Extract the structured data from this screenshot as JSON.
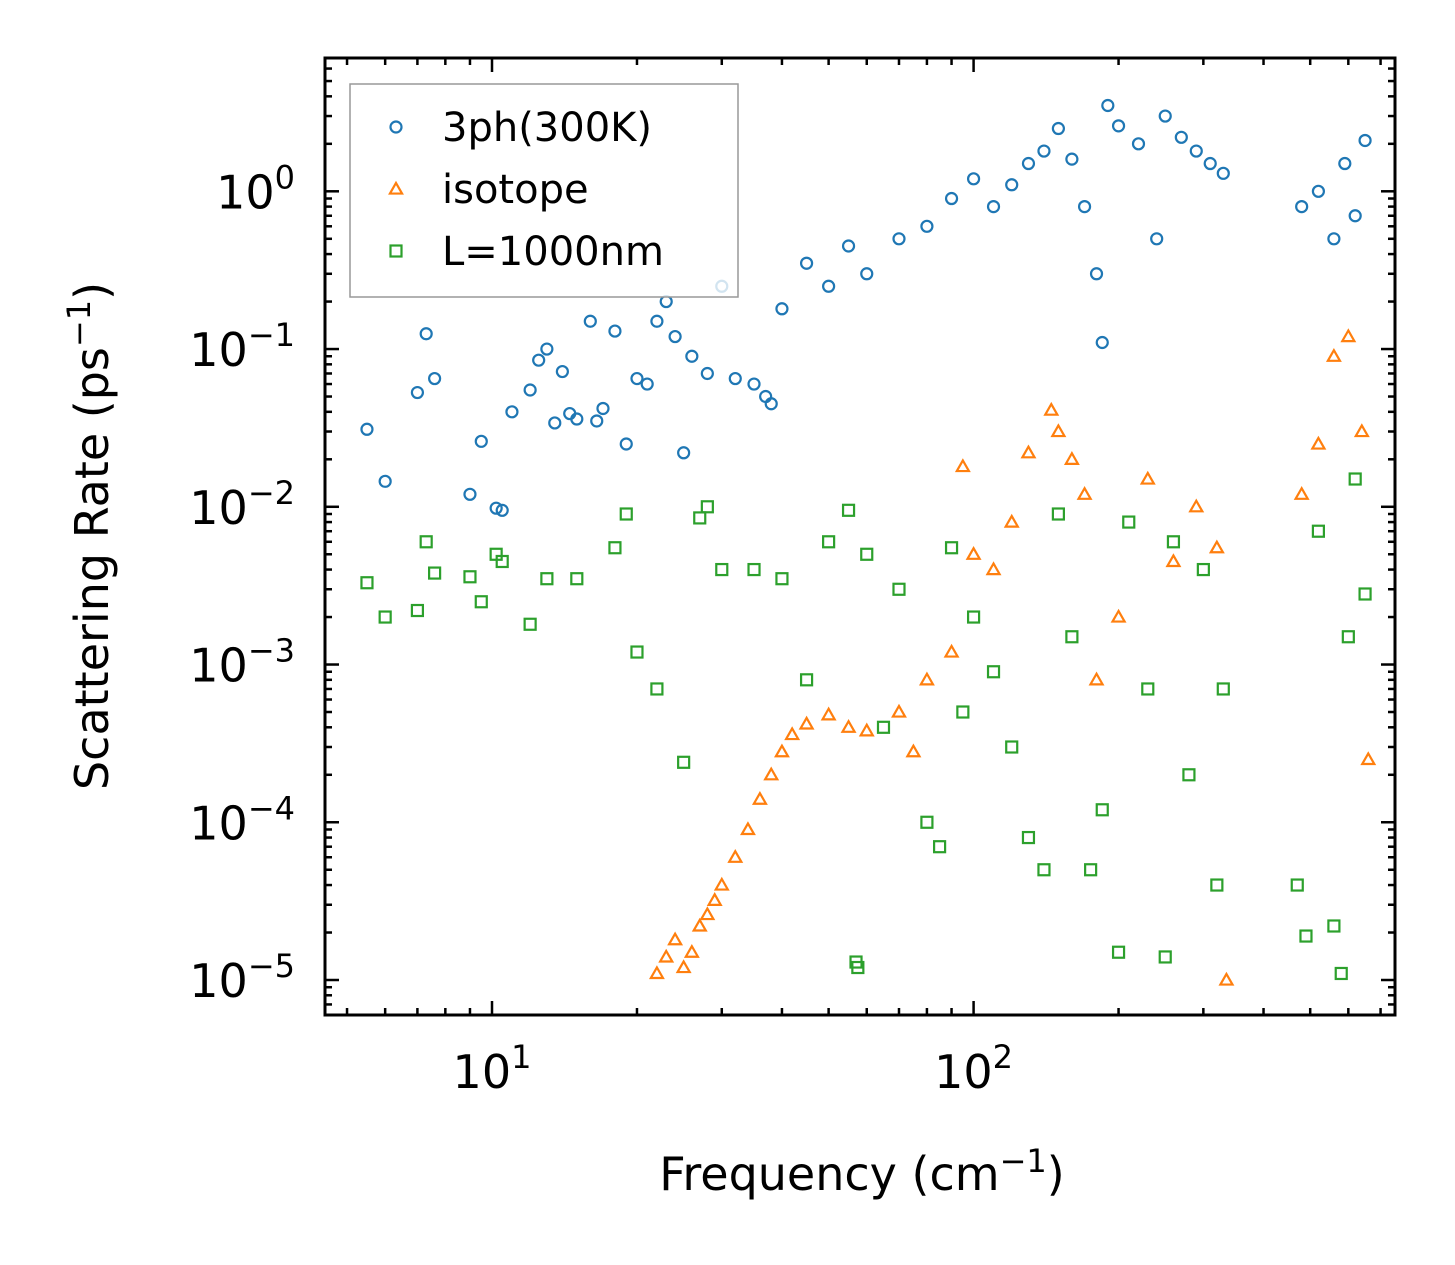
{
  "chart_data": {
    "type": "scatter",
    "title": "",
    "xlabel": "Frequency",
    "xlabel_unit": "cm",
    "xlabel_unit_exp": "−1",
    "ylabel": "Scattering Rate",
    "ylabel_unit": "ps",
    "ylabel_unit_exp": "−1",
    "xscale": "log",
    "yscale": "log",
    "xlim": [
      4.5,
      750
    ],
    "ylim": [
      6e-06,
      7
    ],
    "x_ticks": [
      {
        "value": 10,
        "base": "10",
        "exp": "1"
      },
      {
        "value": 100,
        "base": "10",
        "exp": "2"
      }
    ],
    "y_ticks": [
      {
        "value": 1,
        "base": "10",
        "exp": "0"
      },
      {
        "value": 0.1,
        "base": "10",
        "exp": "−1"
      },
      {
        "value": 0.01,
        "base": "10",
        "exp": "−2"
      },
      {
        "value": 0.001,
        "base": "10",
        "exp": "−3"
      },
      {
        "value": 0.0001,
        "base": "10",
        "exp": "−4"
      },
      {
        "value": 1e-05,
        "base": "10",
        "exp": "−5"
      }
    ],
    "legend_position": "top-left",
    "series": [
      {
        "name": "3ph(300K)",
        "marker": "circle",
        "color": "#1f77b4",
        "points": [
          [
            5.5,
            0.031
          ],
          [
            6.0,
            0.0145
          ],
          [
            7.0,
            0.053
          ],
          [
            7.3,
            0.125
          ],
          [
            7.6,
            0.065
          ],
          [
            9.0,
            0.012
          ],
          [
            9.5,
            0.026
          ],
          [
            10.2,
            0.0098
          ],
          [
            10.5,
            0.0095
          ],
          [
            11.0,
            0.04
          ],
          [
            12.0,
            0.055
          ],
          [
            12.5,
            0.085
          ],
          [
            13.0,
            0.1
          ],
          [
            13.5,
            0.034
          ],
          [
            14.0,
            0.072
          ],
          [
            14.5,
            0.039
          ],
          [
            15.0,
            0.036
          ],
          [
            16.0,
            0.15
          ],
          [
            16.5,
            0.035
          ],
          [
            17.0,
            0.042
          ],
          [
            18.0,
            0.13
          ],
          [
            19.0,
            0.025
          ],
          [
            20.0,
            0.065
          ],
          [
            21.0,
            0.06
          ],
          [
            22.0,
            0.15
          ],
          [
            23.0,
            0.2
          ],
          [
            24.0,
            0.12
          ],
          [
            25.0,
            0.022
          ],
          [
            26.0,
            0.09
          ],
          [
            28.0,
            0.07
          ],
          [
            30.0,
            0.25
          ],
          [
            32.0,
            0.065
          ],
          [
            35.0,
            0.06
          ],
          [
            37.0,
            0.05
          ],
          [
            38.0,
            0.045
          ],
          [
            40.0,
            0.18
          ],
          [
            45.0,
            0.35
          ],
          [
            50.0,
            0.25
          ],
          [
            55.0,
            0.45
          ],
          [
            60.0,
            0.3
          ],
          [
            70.0,
            0.5
          ],
          [
            80.0,
            0.6
          ],
          [
            90.0,
            0.9
          ],
          [
            100.0,
            1.2
          ],
          [
            110.0,
            0.8
          ],
          [
            120.0,
            1.1
          ],
          [
            130.0,
            1.5
          ],
          [
            140.0,
            1.8
          ],
          [
            150.0,
            2.5
          ],
          [
            160.0,
            1.6
          ],
          [
            170.0,
            0.8
          ],
          [
            180.0,
            0.3
          ],
          [
            185.0,
            0.11
          ],
          [
            190.0,
            3.5
          ],
          [
            200.0,
            2.6
          ],
          [
            220.0,
            2.0
          ],
          [
            240.0,
            0.5
          ],
          [
            250.0,
            3.0
          ],
          [
            270.0,
            2.2
          ],
          [
            290.0,
            1.8
          ],
          [
            310.0,
            1.5
          ],
          [
            330.0,
            1.3
          ],
          [
            480.0,
            0.8
          ],
          [
            520.0,
            1.0
          ],
          [
            560.0,
            0.5
          ],
          [
            590.0,
            1.5
          ],
          [
            620.0,
            0.7
          ],
          [
            650.0,
            2.1
          ]
        ]
      },
      {
        "name": "isotope",
        "marker": "triangle",
        "color": "#ff7f0e",
        "points": [
          [
            22.0,
            1.1e-05
          ],
          [
            23.0,
            1.4e-05
          ],
          [
            24.0,
            1.8e-05
          ],
          [
            25.0,
            1.2e-05
          ],
          [
            26.0,
            1.5e-05
          ],
          [
            27.0,
            2.2e-05
          ],
          [
            28.0,
            2.6e-05
          ],
          [
            29.0,
            3.2e-05
          ],
          [
            30.0,
            4e-05
          ],
          [
            32.0,
            6e-05
          ],
          [
            34.0,
            9e-05
          ],
          [
            36.0,
            0.00014
          ],
          [
            38.0,
            0.0002
          ],
          [
            40.0,
            0.00028
          ],
          [
            42.0,
            0.00036
          ],
          [
            45.0,
            0.00042
          ],
          [
            50.0,
            0.00048
          ],
          [
            55.0,
            0.0004
          ],
          [
            60.0,
            0.00038
          ],
          [
            70.0,
            0.0005
          ],
          [
            75.0,
            0.00028
          ],
          [
            80.0,
            0.0008
          ],
          [
            90.0,
            0.0012
          ],
          [
            95.0,
            0.018
          ],
          [
            100.0,
            0.005
          ],
          [
            110.0,
            0.004
          ],
          [
            120.0,
            0.008
          ],
          [
            130.0,
            0.022
          ],
          [
            145.0,
            0.041
          ],
          [
            150.0,
            0.03
          ],
          [
            160.0,
            0.02
          ],
          [
            170.0,
            0.012
          ],
          [
            180.0,
            0.0008
          ],
          [
            200.0,
            0.002
          ],
          [
            230.0,
            0.015
          ],
          [
            260.0,
            0.0045
          ],
          [
            290.0,
            0.01
          ],
          [
            320.0,
            0.0055
          ],
          [
            335.0,
            1e-05
          ],
          [
            480.0,
            0.012
          ],
          [
            520.0,
            0.025
          ],
          [
            560.0,
            0.09
          ],
          [
            600.0,
            0.12
          ],
          [
            640.0,
            0.03
          ],
          [
            660.0,
            0.00025
          ]
        ]
      },
      {
        "name": "L=1000nm",
        "marker": "square",
        "color": "#2ca02c",
        "points": [
          [
            5.5,
            0.0033
          ],
          [
            6.0,
            0.002
          ],
          [
            7.0,
            0.0022
          ],
          [
            7.3,
            0.006
          ],
          [
            7.6,
            0.0038
          ],
          [
            9.0,
            0.0036
          ],
          [
            9.5,
            0.0025
          ],
          [
            10.2,
            0.005
          ],
          [
            10.5,
            0.0045
          ],
          [
            12.0,
            0.0018
          ],
          [
            13.0,
            0.0035
          ],
          [
            15.0,
            0.0035
          ],
          [
            18.0,
            0.0055
          ],
          [
            19.0,
            0.009
          ],
          [
            20.0,
            0.0012
          ],
          [
            22.0,
            0.0007
          ],
          [
            25.0,
            0.00024
          ],
          [
            27.0,
            0.0085
          ],
          [
            28.0,
            0.01
          ],
          [
            30.0,
            0.004
          ],
          [
            35.0,
            0.004
          ],
          [
            40.0,
            0.0035
          ],
          [
            45.0,
            0.0008
          ],
          [
            50.0,
            0.006
          ],
          [
            55.0,
            0.0095
          ],
          [
            57.0,
            1.3e-05
          ],
          [
            57.5,
            1.2e-05
          ],
          [
            60.0,
            0.005
          ],
          [
            65.0,
            0.0004
          ],
          [
            70.0,
            0.003
          ],
          [
            80.0,
            0.0001
          ],
          [
            85.0,
            7e-05
          ],
          [
            90.0,
            0.0055
          ],
          [
            95.0,
            0.0005
          ],
          [
            100.0,
            0.002
          ],
          [
            110.0,
            0.0009
          ],
          [
            120.0,
            0.0003
          ],
          [
            130.0,
            8e-05
          ],
          [
            140.0,
            5e-05
          ],
          [
            150.0,
            0.009
          ],
          [
            160.0,
            0.0015
          ],
          [
            175.0,
            5e-05
          ],
          [
            185.0,
            0.00012
          ],
          [
            200.0,
            1.5e-05
          ],
          [
            210.0,
            0.008
          ],
          [
            230.0,
            0.0007
          ],
          [
            250.0,
            1.4e-05
          ],
          [
            260.0,
            0.006
          ],
          [
            280.0,
            0.0002
          ],
          [
            300.0,
            0.004
          ],
          [
            320.0,
            4e-05
          ],
          [
            330.0,
            0.0007
          ],
          [
            470.0,
            4e-05
          ],
          [
            490.0,
            1.9e-05
          ],
          [
            520.0,
            0.007
          ],
          [
            560.0,
            2.2e-05
          ],
          [
            580.0,
            1.1e-05
          ],
          [
            600.0,
            0.0015
          ],
          [
            620.0,
            0.015
          ],
          [
            650.0,
            0.0028
          ]
        ]
      }
    ]
  }
}
